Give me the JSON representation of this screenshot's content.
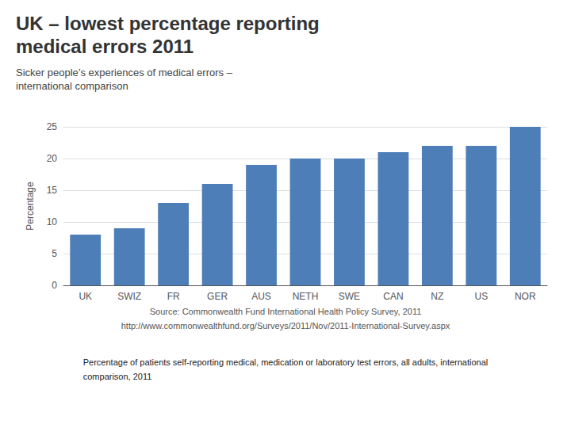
{
  "chart_data": {
    "type": "bar",
    "title": "UK – lowest percentage reporting\nmedical errors 2011",
    "subtitle": "Sicker people’s experiences of medical errors –\ninternational comparison",
    "categories": [
      "UK",
      "SWIZ",
      "FR",
      "GER",
      "AUS",
      "NETH",
      "SWE",
      "CAN",
      "NZ",
      "US",
      "NOR"
    ],
    "values": [
      8,
      9,
      13,
      16,
      19,
      20,
      20,
      21,
      22,
      22,
      25
    ],
    "color": "#4e7eb8",
    "ylabel": "Percentage",
    "ylim": [
      0,
      25
    ],
    "yticks": [
      0,
      5,
      10,
      15,
      20,
      25
    ],
    "grid": true,
    "annotations": [
      "Source: Commonwealth Fund International Health Policy Survey, 2011",
      "http://www.commonwealthfund.org/Surveys/2011/Nov/2011-International-Survey.aspx",
      "Percentage of patients self-reporting medical, medication or laboratory test errors, all adults, international\ncomparison, 2011"
    ]
  }
}
